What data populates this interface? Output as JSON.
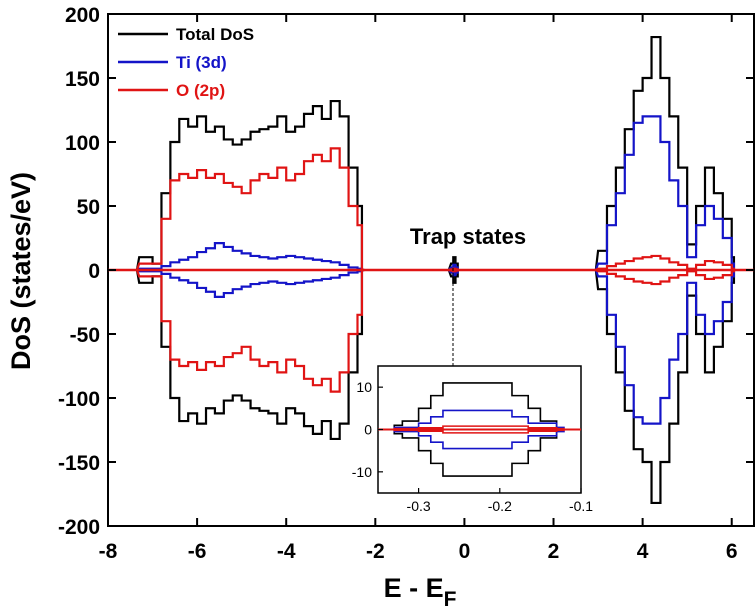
{
  "chart_data": [
    {
      "type": "line",
      "xlabel": "E - E",
      "xlabel_sub": "F",
      "ylabel": "DoS (states/eV)",
      "xlim": [
        -8,
        6.5
      ],
      "ylim": [
        -200,
        200
      ],
      "xticks": [
        "-8",
        "-6",
        "-4",
        "-2",
        "0",
        "2",
        "4",
        "6"
      ],
      "yticks": [
        "200",
        "150",
        "100",
        "50",
        "0",
        "-50",
        "-100",
        "-150",
        "-200"
      ],
      "legend": {
        "position": "top-left"
      },
      "annotation": "Trap states",
      "series": [
        {
          "name": "Total DoS",
          "color": "#000000",
          "x": [
            -7.3,
            -7.0,
            -6.8,
            -6.6,
            -6.4,
            -6.2,
            -6.0,
            -5.8,
            -5.6,
            -5.4,
            -5.2,
            -5.0,
            -4.8,
            -4.6,
            -4.4,
            -4.2,
            -4.0,
            -3.8,
            -3.6,
            -3.4,
            -3.2,
            -3.0,
            -2.8,
            -2.6,
            -2.4,
            -2.3,
            -0.3,
            -0.25,
            -0.2,
            3.0,
            3.2,
            3.4,
            3.6,
            3.8,
            4.0,
            4.2,
            4.4,
            4.6,
            4.8,
            5.0,
            5.2,
            5.4,
            5.6,
            5.8,
            6.0
          ],
          "y": [
            10,
            5,
            60,
            100,
            118,
            112,
            120,
            108,
            112,
            102,
            98,
            102,
            108,
            110,
            112,
            120,
            108,
            112,
            122,
            128,
            118,
            132,
            120,
            80,
            50,
            0,
            5,
            10,
            5,
            15,
            50,
            80,
            110,
            140,
            150,
            182,
            150,
            120,
            80,
            20,
            50,
            80,
            60,
            40,
            10
          ]
        },
        {
          "name": "Ti (3d)",
          "color": "#1414c8",
          "x": [
            -7.3,
            -7.0,
            -6.8,
            -6.6,
            -6.4,
            -6.2,
            -6.0,
            -5.8,
            -5.6,
            -5.4,
            -5.2,
            -5.0,
            -4.8,
            -4.6,
            -4.4,
            -4.2,
            -4.0,
            -3.8,
            -3.6,
            -3.4,
            -3.2,
            -3.0,
            -2.8,
            -2.6,
            -2.4,
            -2.3,
            -0.3,
            -0.25,
            -0.2,
            3.0,
            3.2,
            3.4,
            3.6,
            3.8,
            4.0,
            4.2,
            4.4,
            4.6,
            4.8,
            5.0,
            5.2,
            5.4,
            5.6,
            5.8,
            6.0
          ],
          "y": [
            1,
            1,
            3,
            6,
            8,
            10,
            14,
            17,
            21,
            18,
            15,
            13,
            11,
            10,
            9,
            10,
            11,
            10,
            9,
            8,
            7,
            6,
            4,
            2,
            1,
            0,
            2,
            4,
            2,
            5,
            35,
            60,
            90,
            115,
            120,
            120,
            100,
            70,
            50,
            10,
            35,
            50,
            40,
            25,
            5
          ]
        },
        {
          "name": "O (2p)",
          "color": "#e01414",
          "x": [
            -7.3,
            -7.0,
            -6.8,
            -6.6,
            -6.4,
            -6.2,
            -6.0,
            -5.8,
            -5.6,
            -5.4,
            -5.2,
            -5.0,
            -4.8,
            -4.6,
            -4.4,
            -4.2,
            -4.0,
            -3.8,
            -3.6,
            -3.4,
            -3.2,
            -3.0,
            -2.8,
            -2.6,
            -2.4,
            -2.3,
            -0.3,
            -0.25,
            -0.2,
            3.0,
            3.2,
            3.4,
            3.6,
            3.8,
            4.0,
            4.2,
            4.4,
            4.6,
            4.8,
            5.0,
            5.2,
            5.4,
            5.6,
            5.8,
            6.0
          ],
          "y": [
            5,
            5,
            40,
            70,
            75,
            72,
            78,
            72,
            75,
            68,
            65,
            60,
            70,
            75,
            72,
            80,
            70,
            75,
            85,
            90,
            85,
            95,
            80,
            50,
            35,
            0,
            0.5,
            1,
            0.5,
            1,
            3,
            5,
            7,
            9,
            10,
            11,
            9,
            6,
            4,
            1,
            4,
            7,
            6,
            4,
            1
          ]
        }
      ]
    },
    {
      "type": "line",
      "xlim": [
        -0.35,
        -0.1
      ],
      "ylim": [
        -15,
        15
      ],
      "xticks": [
        "-0.3",
        "-0.2",
        "-0.1"
      ],
      "yticks": [
        "10",
        "0",
        "-10"
      ],
      "series": [
        {
          "name": "Total DoS",
          "color": "#000000",
          "x": [
            -0.33,
            -0.32,
            -0.3,
            -0.285,
            -0.27,
            -0.2,
            -0.185,
            -0.165,
            -0.15,
            -0.13
          ],
          "y": [
            1,
            2,
            5,
            8,
            11,
            11,
            8,
            5,
            2,
            0
          ]
        },
        {
          "name": "Ti (3d)",
          "color": "#1414c8",
          "x": [
            -0.33,
            -0.3,
            -0.285,
            -0.27,
            -0.2,
            -0.185,
            -0.165,
            -0.13
          ],
          "y": [
            0.5,
            1.5,
            3,
            4.5,
            4.5,
            3,
            1.5,
            0.5
          ]
        },
        {
          "name": "O (2p)",
          "color": "#e01414",
          "x": [
            -0.33,
            -0.3,
            -0.27,
            -0.2,
            -0.165,
            -0.13
          ],
          "y": [
            0.2,
            0.4,
            0.8,
            0.8,
            0.4,
            0.2
          ]
        }
      ]
    }
  ]
}
